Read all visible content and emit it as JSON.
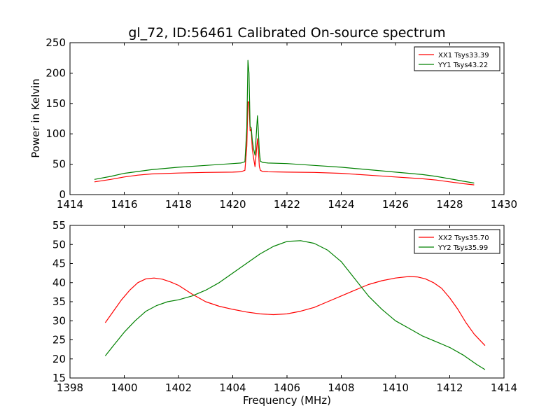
{
  "figure": {
    "title": "gl_72, ID:56461 Calibrated On-source spectrum"
  },
  "chart_data": [
    {
      "type": "line",
      "title": "gl_72, ID:56461 Calibrated On-source spectrum",
      "xlabel": "",
      "ylabel": "Power in Kelvin",
      "xlim": [
        1414,
        1430
      ],
      "ylim": [
        0,
        250
      ],
      "xticks": [
        1414,
        1416,
        1418,
        1420,
        1422,
        1424,
        1426,
        1428,
        1430
      ],
      "yticks": [
        0,
        50,
        100,
        150,
        200,
        250
      ],
      "legend_position": "top-right",
      "series": [
        {
          "name": "XX1 Tsys33.39",
          "color": "#ff0000",
          "x": [
            1414.9,
            1415.5,
            1416.0,
            1416.5,
            1417.0,
            1418.0,
            1419.0,
            1420.0,
            1420.3,
            1420.45,
            1420.52,
            1420.56,
            1420.6,
            1420.64,
            1420.68,
            1420.72,
            1420.77,
            1420.82,
            1420.87,
            1420.91,
            1420.94,
            1420.98,
            1421.02,
            1421.1,
            1421.3,
            1422.0,
            1423.0,
            1424.0,
            1425.0,
            1426.0,
            1427.0,
            1427.5,
            1428.0,
            1428.5,
            1428.9
          ],
          "y": [
            21,
            25,
            29,
            32,
            34,
            35.5,
            36.5,
            37,
            37.5,
            40,
            80,
            153,
            152,
            105,
            108,
            75,
            60,
            46,
            70,
            92,
            78,
            46,
            40,
            38,
            37.5,
            37,
            36.5,
            35,
            32,
            29,
            26,
            24,
            21,
            18,
            16
          ]
        },
        {
          "name": "YY1 Tsys43.22",
          "color": "#008000",
          "x": [
            1414.9,
            1415.5,
            1416.0,
            1416.5,
            1417.0,
            1418.0,
            1419.0,
            1420.0,
            1420.3,
            1420.45,
            1420.52,
            1420.56,
            1420.6,
            1420.64,
            1420.68,
            1420.72,
            1420.77,
            1420.82,
            1420.87,
            1420.91,
            1420.94,
            1420.98,
            1421.02,
            1421.1,
            1421.3,
            1422.0,
            1423.0,
            1424.0,
            1425.0,
            1426.0,
            1427.0,
            1427.5,
            1428.0,
            1428.5,
            1428.9
          ],
          "y": [
            25,
            30,
            35,
            38,
            41,
            45,
            48,
            51,
            52,
            54,
            110,
            221,
            200,
            112,
            110,
            90,
            75,
            65,
            100,
            130,
            110,
            70,
            55,
            53,
            52,
            51,
            48,
            45,
            41,
            37,
            33,
            30,
            26,
            22,
            19
          ]
        }
      ]
    },
    {
      "type": "line",
      "title": "",
      "xlabel": "Frequency (MHz)",
      "ylabel": "",
      "xlim": [
        1398,
        1414
      ],
      "ylim": [
        15,
        55
      ],
      "xticks": [
        1398,
        1400,
        1402,
        1404,
        1406,
        1408,
        1410,
        1412,
        1414
      ],
      "yticks": [
        15,
        20,
        25,
        30,
        35,
        40,
        45,
        50,
        55
      ],
      "legend_position": "top-right",
      "series": [
        {
          "name": "XX2 Tsys35.70",
          "color": "#ff0000",
          "x": [
            1399.3,
            1399.6,
            1399.9,
            1400.2,
            1400.5,
            1400.8,
            1401.1,
            1401.4,
            1401.7,
            1402.0,
            1402.5,
            1403.0,
            1403.5,
            1404.0,
            1404.5,
            1405.0,
            1405.5,
            1406.0,
            1406.5,
            1407.0,
            1407.5,
            1408.0,
            1408.5,
            1409.0,
            1409.5,
            1410.0,
            1410.5,
            1410.8,
            1411.1,
            1411.4,
            1411.7,
            1412.0,
            1412.3,
            1412.6,
            1412.9,
            1413.3
          ],
          "y": [
            29.5,
            32.5,
            35.5,
            38,
            40,
            41,
            41.2,
            40.9,
            40.2,
            39.3,
            37,
            35,
            33.8,
            33,
            32.3,
            31.8,
            31.6,
            31.8,
            32.5,
            33.5,
            35,
            36.5,
            38,
            39.5,
            40.5,
            41.2,
            41.6,
            41.5,
            41,
            40,
            38.5,
            36,
            33,
            29.5,
            26.5,
            23.5
          ]
        },
        {
          "name": "YY2 Tsys35.99",
          "color": "#008000",
          "x": [
            1399.3,
            1399.6,
            1400.0,
            1400.4,
            1400.8,
            1401.2,
            1401.6,
            1402.0,
            1402.5,
            1403.0,
            1403.5,
            1404.0,
            1404.5,
            1405.0,
            1405.5,
            1406.0,
            1406.5,
            1407.0,
            1407.5,
            1408.0,
            1408.5,
            1409.0,
            1409.5,
            1410.0,
            1410.5,
            1411.0,
            1411.5,
            1412.0,
            1412.5,
            1413.0,
            1413.3
          ],
          "y": [
            20.8,
            23.5,
            27,
            30,
            32.5,
            34,
            35,
            35.5,
            36.5,
            38,
            40,
            42.5,
            45,
            47.5,
            49.5,
            50.8,
            51,
            50.3,
            48.5,
            45.5,
            41,
            36.5,
            33,
            30,
            28,
            26,
            24.5,
            23,
            21,
            18.5,
            17.2
          ]
        }
      ]
    }
  ]
}
